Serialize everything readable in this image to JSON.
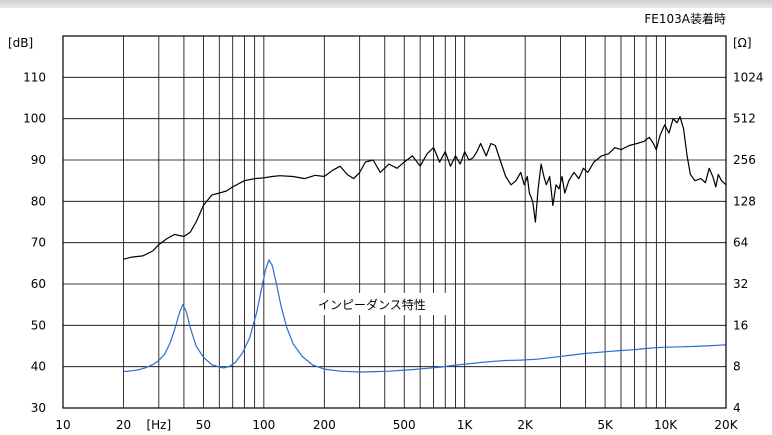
{
  "chart_data": {
    "type": "line",
    "title": "FE103A装着時",
    "left_unit": "[dB]",
    "right_unit": "[Ω]",
    "annotation": "インピーダンス特性",
    "x_scale": "log",
    "xlim": [
      10,
      20000
    ],
    "ylim": [
      30,
      120
    ],
    "x_tick_labels": [
      {
        "value": 10,
        "label": "10"
      },
      {
        "value": 20,
        "label": "20"
      },
      {
        "value": 30,
        "label": "[Hz]"
      },
      {
        "value": 50,
        "label": "50"
      },
      {
        "value": 100,
        "label": "100"
      },
      {
        "value": 200,
        "label": "200"
      },
      {
        "value": 500,
        "label": "500"
      },
      {
        "value": 1000,
        "label": "1K"
      },
      {
        "value": 2000,
        "label": "2K"
      },
      {
        "value": 5000,
        "label": "5K"
      },
      {
        "value": 10000,
        "label": "10K"
      },
      {
        "value": 20000,
        "label": "20K"
      }
    ],
    "y_ticks_left": [
      30,
      40,
      50,
      60,
      70,
      80,
      90,
      100,
      110
    ],
    "y_ticks_right": [
      "4",
      "8",
      "16",
      "32",
      "64",
      "128",
      "256",
      "512",
      "1024"
    ],
    "series": [
      {
        "color": "#000000",
        "points": [
          [
            20,
            66
          ],
          [
            22,
            66.5
          ],
          [
            25,
            66.8
          ],
          [
            28,
            68
          ],
          [
            30,
            69.5
          ],
          [
            33,
            71
          ],
          [
            36,
            72
          ],
          [
            40,
            71.5
          ],
          [
            43,
            72.5
          ],
          [
            46,
            75
          ],
          [
            50,
            79
          ],
          [
            55,
            81.5
          ],
          [
            60,
            82
          ],
          [
            65,
            82.5
          ],
          [
            70,
            83.5
          ],
          [
            80,
            85
          ],
          [
            90,
            85.5
          ],
          [
            100,
            85.7
          ],
          [
            110,
            86
          ],
          [
            120,
            86.2
          ],
          [
            140,
            86
          ],
          [
            160,
            85.5
          ],
          [
            180,
            86.3
          ],
          [
            200,
            86
          ],
          [
            220,
            87.5
          ],
          [
            240,
            88.5
          ],
          [
            260,
            86.5
          ],
          [
            280,
            85.5
          ],
          [
            300,
            87
          ],
          [
            320,
            89.5
          ],
          [
            350,
            90
          ],
          [
            380,
            87
          ],
          [
            420,
            89
          ],
          [
            460,
            88
          ],
          [
            500,
            89.5
          ],
          [
            550,
            91
          ],
          [
            600,
            88.5
          ],
          [
            650,
            91.5
          ],
          [
            700,
            93
          ],
          [
            750,
            89.5
          ],
          [
            800,
            92
          ],
          [
            850,
            88.5
          ],
          [
            900,
            91
          ],
          [
            950,
            89
          ],
          [
            1000,
            92
          ],
          [
            1050,
            90
          ],
          [
            1100,
            90.5
          ],
          [
            1150,
            92
          ],
          [
            1200,
            94
          ],
          [
            1280,
            91
          ],
          [
            1350,
            94
          ],
          [
            1420,
            93.5
          ],
          [
            1500,
            90
          ],
          [
            1600,
            86
          ],
          [
            1700,
            84
          ],
          [
            1800,
            85
          ],
          [
            1900,
            87
          ],
          [
            1980,
            84
          ],
          [
            2050,
            86
          ],
          [
            2100,
            82
          ],
          [
            2180,
            80
          ],
          [
            2250,
            75
          ],
          [
            2320,
            83
          ],
          [
            2400,
            89
          ],
          [
            2480,
            86
          ],
          [
            2550,
            84
          ],
          [
            2650,
            86
          ],
          [
            2750,
            79
          ],
          [
            2850,
            84
          ],
          [
            2950,
            83
          ],
          [
            3050,
            86
          ],
          [
            3150,
            82
          ],
          [
            3300,
            85
          ],
          [
            3500,
            87
          ],
          [
            3700,
            85.5
          ],
          [
            3900,
            88
          ],
          [
            4100,
            87
          ],
          [
            4400,
            89.5
          ],
          [
            4800,
            91
          ],
          [
            5200,
            91.5
          ],
          [
            5600,
            93
          ],
          [
            6000,
            92.5
          ],
          [
            6600,
            93.5
          ],
          [
            7200,
            94
          ],
          [
            7800,
            94.5
          ],
          [
            8300,
            95.5
          ],
          [
            8700,
            94
          ],
          [
            9000,
            92.5
          ],
          [
            9400,
            96
          ],
          [
            9900,
            98.5
          ],
          [
            10400,
            96.5
          ],
          [
            10900,
            100
          ],
          [
            11400,
            99
          ],
          [
            11800,
            100.5
          ],
          [
            12300,
            97.5
          ],
          [
            12800,
            91
          ],
          [
            13300,
            86.5
          ],
          [
            14000,
            85
          ],
          [
            15000,
            85.5
          ],
          [
            15800,
            84.5
          ],
          [
            16500,
            88
          ],
          [
            17200,
            86
          ],
          [
            17800,
            83.5
          ],
          [
            18300,
            86.5
          ],
          [
            19000,
            85
          ],
          [
            20000,
            84
          ]
        ]
      },
      {
        "color": "#2a6fcf",
        "points": [
          [
            20,
            38.8
          ],
          [
            22,
            39
          ],
          [
            24,
            39.3
          ],
          [
            26,
            39.8
          ],
          [
            28,
            40.5
          ],
          [
            30,
            41.5
          ],
          [
            32,
            43
          ],
          [
            34,
            45.5
          ],
          [
            36,
            49
          ],
          [
            38,
            53
          ],
          [
            39.5,
            55
          ],
          [
            41,
            53.5
          ],
          [
            43,
            49.5
          ],
          [
            46,
            45
          ],
          [
            50,
            42.3
          ],
          [
            55,
            40.5
          ],
          [
            60,
            39.9
          ],
          [
            63,
            39.7
          ],
          [
            67,
            40
          ],
          [
            72,
            41
          ],
          [
            78,
            43.2
          ],
          [
            85,
            47
          ],
          [
            92,
            53
          ],
          [
            98,
            59.5
          ],
          [
            102,
            63.5
          ],
          [
            106,
            65.8
          ],
          [
            110,
            64.5
          ],
          [
            115,
            60.5
          ],
          [
            122,
            54.5
          ],
          [
            130,
            49.5
          ],
          [
            140,
            45.5
          ],
          [
            155,
            42.5
          ],
          [
            175,
            40.4
          ],
          [
            200,
            39.4
          ],
          [
            240,
            38.9
          ],
          [
            300,
            38.7
          ],
          [
            360,
            38.8
          ],
          [
            420,
            38.9
          ],
          [
            480,
            39.1
          ],
          [
            550,
            39.3
          ],
          [
            650,
            39.6
          ],
          [
            760,
            39.9
          ],
          [
            880,
            40.3
          ],
          [
            1000,
            40.6
          ],
          [
            1200,
            41
          ],
          [
            1400,
            41.3
          ],
          [
            1600,
            41.5
          ],
          [
            1900,
            41.6
          ],
          [
            2300,
            41.8
          ],
          [
            2800,
            42.3
          ],
          [
            3400,
            42.8
          ],
          [
            4000,
            43.2
          ],
          [
            5000,
            43.6
          ],
          [
            6000,
            43.9
          ],
          [
            7000,
            44.1
          ],
          [
            8000,
            44.4
          ],
          [
            9000,
            44.6
          ],
          [
            10000,
            44.7
          ],
          [
            12000,
            44.8
          ],
          [
            14000,
            44.9
          ],
          [
            17000,
            45.1
          ],
          [
            20000,
            45.3
          ]
        ]
      }
    ]
  }
}
